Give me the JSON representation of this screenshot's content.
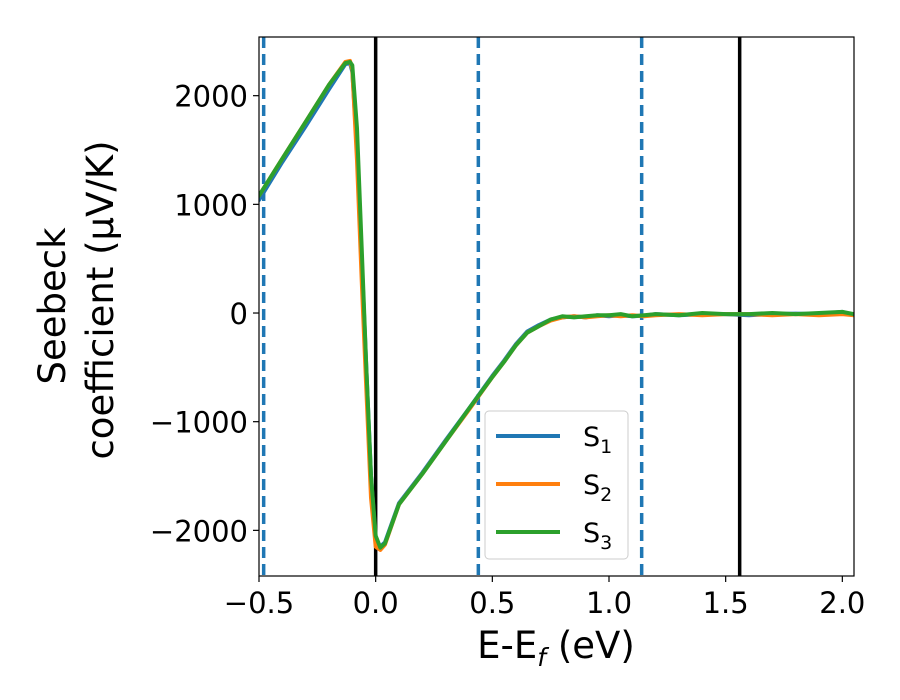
{
  "chart_data": {
    "type": "line",
    "title": "",
    "xlabel": {
      "main": "E-E",
      "sub": "f",
      "tail": " (eV)"
    },
    "ylabel": {
      "line1": "Seebeck",
      "line2": "coefficient  (μV/K)"
    },
    "xlim": [
      -0.5,
      2.05
    ],
    "ylim": [
      -2420,
      2540
    ],
    "xticks": [
      -0.5,
      0.0,
      0.5,
      1.0,
      1.5,
      2.0
    ],
    "xtick_labels": [
      "−0.5",
      "0.0",
      "0.5",
      "1.0",
      "1.5",
      "2.0"
    ],
    "yticks": [
      -2000,
      -1000,
      0,
      1000,
      2000
    ],
    "ytick_labels": [
      "−2000",
      "−1000",
      "0",
      "1000",
      "2000"
    ],
    "grid": false,
    "legend_position": "lower-center",
    "series": [
      {
        "name": {
          "main": "S",
          "sub": "1"
        },
        "color": "#1f77b4",
        "x": [
          -0.5,
          -0.4,
          -0.3,
          -0.2,
          -0.13,
          -0.11,
          -0.1,
          -0.08,
          -0.06,
          -0.04,
          -0.02,
          0.0,
          0.02,
          0.04,
          0.1,
          0.2,
          0.3,
          0.4,
          0.5,
          0.55,
          0.6,
          0.65,
          0.7,
          0.75,
          0.8,
          0.85,
          0.9,
          0.95,
          1.0,
          1.05,
          1.1,
          1.15,
          1.2,
          1.3,
          1.4,
          1.5,
          1.6,
          1.7,
          1.8,
          1.9,
          2.0,
          2.05
        ],
        "y": [
          1040,
          1390,
          1720,
          2060,
          2290,
          2300,
          2220,
          1500,
          500,
          -500,
          -1500,
          -2090,
          -2150,
          -2110,
          -1750,
          -1470,
          -1170,
          -880,
          -580,
          -440,
          -290,
          -170,
          -110,
          -60,
          -40,
          -30,
          -40,
          -20,
          -30,
          -20,
          -30,
          -25,
          -10,
          -20,
          -10,
          -10,
          -20,
          -10,
          -5,
          -10,
          10,
          -20
        ]
      },
      {
        "name": {
          "main": "S",
          "sub": "2"
        },
        "color": "#ff7f0e",
        "x": [
          -0.5,
          -0.4,
          -0.3,
          -0.2,
          -0.13,
          -0.11,
          -0.1,
          -0.08,
          -0.06,
          -0.04,
          -0.02,
          0.0,
          0.02,
          0.04,
          0.1,
          0.2,
          0.3,
          0.4,
          0.5,
          0.55,
          0.6,
          0.65,
          0.7,
          0.75,
          0.8,
          0.85,
          0.9,
          0.95,
          1.0,
          1.05,
          1.1,
          1.15,
          1.2,
          1.3,
          1.4,
          1.5,
          1.6,
          1.7,
          1.8,
          1.9,
          2.0,
          2.05
        ],
        "y": [
          1080,
          1420,
          1760,
          2100,
          2310,
          2320,
          2240,
          1400,
          300,
          -700,
          -1700,
          -2150,
          -2180,
          -2130,
          -1760,
          -1480,
          -1180,
          -890,
          -590,
          -450,
          -300,
          -180,
          -120,
          -70,
          -40,
          -30,
          -40,
          -30,
          -20,
          -30,
          -20,
          -30,
          -20,
          -10,
          -20,
          -10,
          -10,
          -20,
          -10,
          -20,
          -10,
          -20
        ]
      },
      {
        "name": {
          "main": "S",
          "sub": "3"
        },
        "color": "#2ca02c",
        "x": [
          -0.5,
          -0.4,
          -0.3,
          -0.2,
          -0.13,
          -0.11,
          -0.1,
          -0.08,
          -0.06,
          -0.04,
          -0.02,
          0.0,
          0.02,
          0.04,
          0.1,
          0.2,
          0.3,
          0.4,
          0.5,
          0.55,
          0.6,
          0.65,
          0.7,
          0.75,
          0.8,
          0.85,
          0.9,
          0.95,
          1.0,
          1.05,
          1.1,
          1.15,
          1.2,
          1.3,
          1.4,
          1.5,
          1.6,
          1.7,
          1.8,
          1.9,
          2.0,
          2.05
        ],
        "y": [
          1080,
          1420,
          1760,
          2100,
          2300,
          2310,
          2280,
          1700,
          600,
          -500,
          -1500,
          -2050,
          -2160,
          -2120,
          -1760,
          -1480,
          -1180,
          -880,
          -590,
          -450,
          -300,
          -180,
          -120,
          -60,
          -30,
          -40,
          -30,
          -20,
          -20,
          -10,
          -30,
          -20,
          -10,
          -20,
          0,
          -10,
          -10,
          0,
          -10,
          0,
          10,
          -10
        ]
      }
    ],
    "vlines": [
      {
        "x": -0.48,
        "color": "#1f77b4",
        "style": "dashed"
      },
      {
        "x": 0.0,
        "color": "#000000",
        "style": "solid"
      },
      {
        "x": 0.44,
        "color": "#1f77b4",
        "style": "dashed"
      },
      {
        "x": 1.14,
        "color": "#1f77b4",
        "style": "dashed"
      },
      {
        "x": 1.56,
        "color": "#000000",
        "style": "solid"
      }
    ]
  }
}
